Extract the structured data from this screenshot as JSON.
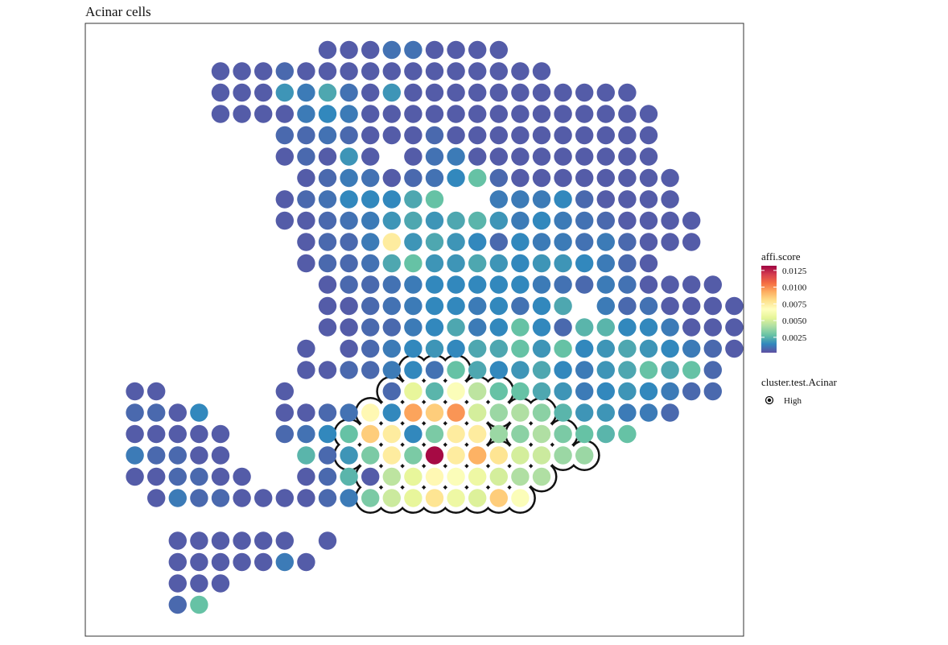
{
  "chart_data": {
    "type": "scatter",
    "title": "Acinar cells",
    "xlabel": "",
    "ylabel": "",
    "color_legend": {
      "title": "affi.score",
      "ticks": [
        "0.0025",
        "0.0050",
        "0.0075",
        "0.0100",
        "0.0125"
      ],
      "range": [
        0.0002,
        0.0132
      ],
      "palette": [
        "#5E4FA2",
        "#3288BD",
        "#66C2A5",
        "#ABDDA4",
        "#E6F598",
        "#FFFFBF",
        "#FEE08B",
        "#FDAE61",
        "#F46D43",
        "#D53E4F",
        "#9E0142"
      ]
    },
    "outline_legend": {
      "title": "cluster.test.Acinar",
      "entries": [
        "High"
      ]
    },
    "grid": false,
    "rows": [
      {
        "row": 0,
        "cols": [
          10,
          11,
          12,
          13,
          14,
          15,
          16,
          17,
          18
        ],
        "scores": [
          0.0005,
          0.0005,
          0.0005,
          0.001,
          0.001,
          0.0005,
          0.0005,
          0.0005,
          0.0005
        ]
      },
      {
        "row": 1,
        "cols": [
          5,
          6,
          7,
          8,
          9,
          10,
          11,
          12,
          13,
          14,
          15,
          16,
          17,
          18,
          19,
          20
        ],
        "scores": [
          0.0005,
          0.0005,
          0.0005,
          0.0008,
          0.0005,
          0.0005,
          0.0005,
          0.0005,
          0.0005,
          0.0005,
          0.0005,
          0.0005,
          0.0005,
          0.0005,
          0.0005,
          0.0005
        ]
      },
      {
        "row": 2,
        "cols": [
          5,
          6,
          7,
          8,
          9,
          10,
          11,
          12,
          13,
          14,
          15,
          16,
          17,
          18,
          19,
          20,
          21,
          22,
          23,
          24
        ],
        "scores": [
          0.0005,
          0.0005,
          0.0005,
          0.0018,
          0.0012,
          0.0022,
          0.001,
          0.0005,
          0.0018,
          0.0005,
          0.0005,
          0.0005,
          0.0005,
          0.0005,
          0.0005,
          0.0005,
          0.0005,
          0.0005,
          0.0005,
          0.0005
        ]
      },
      {
        "row": 3,
        "cols": [
          5,
          6,
          7,
          8,
          9,
          10,
          11,
          12,
          13,
          14,
          15,
          16,
          17,
          18,
          19,
          20,
          21,
          22,
          23,
          24,
          25
        ],
        "scores": [
          0.0005,
          0.0005,
          0.0005,
          0.0005,
          0.0012,
          0.0015,
          0.0012,
          0.0005,
          0.0005,
          0.0005,
          0.0005,
          0.0005,
          0.0005,
          0.0005,
          0.0005,
          0.0005,
          0.0005,
          0.0005,
          0.0005,
          0.0005,
          0.0005
        ]
      },
      {
        "row": 4,
        "cols": [
          8,
          9,
          10,
          11,
          12,
          13,
          14,
          15,
          16,
          17,
          18,
          19,
          20,
          21,
          22,
          23,
          24,
          25
        ],
        "scores": [
          0.0008,
          0.0008,
          0.001,
          0.0008,
          0.0005,
          0.0005,
          0.0005,
          0.0008,
          0.0005,
          0.0005,
          0.0005,
          0.0005,
          0.0005,
          0.0005,
          0.0005,
          0.0005,
          0.0005,
          0.0005
        ]
      },
      {
        "row": 5,
        "cols": [
          8,
          9,
          10,
          11,
          12,
          14,
          15,
          16,
          17,
          18,
          19,
          20,
          21,
          22,
          23,
          24,
          25
        ],
        "scores": [
          0.0005,
          0.0008,
          0.0005,
          0.0018,
          0.0005,
          0.0005,
          0.001,
          0.0012,
          0.0005,
          0.0005,
          0.0005,
          0.0005,
          0.0005,
          0.0005,
          0.0005,
          0.0005,
          0.0005
        ]
      },
      {
        "row": 6,
        "cols": [
          9,
          10,
          11,
          12,
          13,
          14,
          15,
          16,
          17,
          18,
          19,
          20,
          21,
          22,
          23,
          24,
          25,
          26
        ],
        "scores": [
          0.0005,
          0.0008,
          0.0012,
          0.001,
          0.0005,
          0.0008,
          0.001,
          0.0015,
          0.0028,
          0.0008,
          0.0005,
          0.0005,
          0.0005,
          0.0005,
          0.0005,
          0.0005,
          0.0005,
          0.0005
        ]
      },
      {
        "row": 7,
        "cols": [
          8,
          9,
          10,
          11,
          12,
          13,
          14,
          15,
          18,
          19,
          20,
          21,
          22,
          23,
          24,
          25,
          26
        ],
        "scores": [
          0.0005,
          0.0008,
          0.001,
          0.0015,
          0.0015,
          0.0015,
          0.0022,
          0.0028,
          0.0012,
          0.0012,
          0.0012,
          0.0015,
          0.0008,
          0.0005,
          0.0005,
          0.0005,
          0.0005
        ]
      },
      {
        "row": 8,
        "cols": [
          8,
          9,
          10,
          11,
          12,
          13,
          14,
          15,
          16,
          17,
          18,
          19,
          20,
          21,
          22,
          23,
          24,
          25,
          26,
          27
        ],
        "scores": [
          0.0005,
          0.0005,
          0.0008,
          0.001,
          0.0012,
          0.0018,
          0.0022,
          0.0018,
          0.0022,
          0.0025,
          0.0018,
          0.0012,
          0.0015,
          0.0012,
          0.001,
          0.0008,
          0.0005,
          0.0005,
          0.0005,
          0.0005
        ]
      },
      {
        "row": 9,
        "cols": [
          9,
          10,
          11,
          12,
          13,
          14,
          15,
          16,
          17,
          18,
          19,
          20,
          21,
          22,
          23,
          24,
          25,
          26,
          27
        ],
        "scores": [
          0.0005,
          0.0008,
          0.0008,
          0.0012,
          0.0075,
          0.0018,
          0.0022,
          0.0018,
          0.0015,
          0.0008,
          0.0015,
          0.0012,
          0.0012,
          0.001,
          0.0012,
          0.0008,
          0.0005,
          0.0005,
          0.0005
        ]
      },
      {
        "row": 10,
        "cols": [
          9,
          10,
          11,
          12,
          13,
          14,
          15,
          16,
          17,
          18,
          19,
          20,
          21,
          22,
          23,
          24,
          25
        ],
        "scores": [
          0.0005,
          0.0008,
          0.0008,
          0.001,
          0.0022,
          0.0028,
          0.0018,
          0.0018,
          0.0022,
          0.0018,
          0.0015,
          0.0018,
          0.0018,
          0.0015,
          0.0012,
          0.0008,
          0.0005
        ]
      },
      {
        "row": 11,
        "cols": [
          10,
          11,
          12,
          13,
          14,
          15,
          16,
          17,
          18,
          19,
          20,
          21,
          22,
          23,
          24,
          25,
          26,
          27,
          28
        ],
        "scores": [
          0.0005,
          0.0008,
          0.0008,
          0.001,
          0.0012,
          0.0015,
          0.0015,
          0.0015,
          0.0015,
          0.0015,
          0.0012,
          0.001,
          0.0008,
          0.0012,
          0.001,
          0.0005,
          0.0005,
          0.0005,
          0.0005
        ]
      },
      {
        "row": 12,
        "cols": [
          10,
          11,
          12,
          13,
          14,
          15,
          16,
          17,
          18,
          19,
          20,
          21,
          23,
          24,
          25,
          26,
          27,
          28,
          29
        ],
        "scores": [
          0.0005,
          0.0005,
          0.0008,
          0.001,
          0.0012,
          0.0015,
          0.0015,
          0.0012,
          0.0015,
          0.001,
          0.0015,
          0.0022,
          0.0012,
          0.0008,
          0.001,
          0.0005,
          0.0005,
          0.0005,
          0.0005
        ]
      },
      {
        "row": 13,
        "cols": [
          10,
          11,
          12,
          13,
          14,
          15,
          16,
          17,
          18,
          19,
          20,
          21,
          22,
          23,
          24,
          25,
          26,
          27,
          28,
          29
        ],
        "scores": [
          0.0005,
          0.0005,
          0.0008,
          0.0008,
          0.0012,
          0.0015,
          0.0022,
          0.0012,
          0.0015,
          0.0028,
          0.0015,
          0.0008,
          0.0025,
          0.0025,
          0.0015,
          0.0015,
          0.0012,
          0.0005,
          0.0005,
          0.0005
        ]
      },
      {
        "row": 14,
        "cols": [
          9,
          11,
          12,
          13,
          14,
          15,
          16,
          17,
          18,
          19,
          20,
          21,
          22,
          23,
          24,
          25,
          26,
          27,
          28,
          29
        ],
        "scores": [
          0.0005,
          0.0005,
          0.0008,
          0.0012,
          0.0015,
          0.0018,
          0.0015,
          0.0022,
          0.0022,
          0.0028,
          0.0018,
          0.0028,
          0.0015,
          0.0018,
          0.0022,
          0.0018,
          0.0015,
          0.0012,
          0.0008,
          0.0005
        ]
      },
      {
        "row": 15,
        "cols": [
          9,
          10,
          11,
          12,
          13,
          14,
          15,
          16,
          17,
          18,
          19,
          20,
          21,
          22,
          23,
          24,
          25,
          26,
          27,
          28
        ],
        "scores": [
          0.0005,
          0.0005,
          0.0008,
          0.0008,
          0.0012,
          0.0015,
          0.001,
          0.0028,
          0.0022,
          0.0015,
          0.0018,
          0.0022,
          0.0015,
          0.0012,
          0.0018,
          0.0022,
          0.0028,
          0.0022,
          0.0028,
          0.0008
        ]
      },
      {
        "row": 16,
        "cols": [
          1,
          2,
          8,
          13,
          14,
          15,
          16,
          17,
          18,
          19,
          20,
          21,
          22,
          23,
          24,
          25,
          26,
          27,
          28
        ],
        "scores": [
          0.0005,
          0.0005,
          0.0005,
          0.0008,
          0.0055,
          0.0025,
          0.0065,
          0.0045,
          0.0028,
          0.0028,
          0.0022,
          0.0018,
          0.0012,
          0.0015,
          0.0018,
          0.0015,
          0.0012,
          0.0008,
          0.0008
        ]
      },
      {
        "row": 17,
        "cols": [
          1,
          2,
          3,
          4,
          8,
          9,
          10,
          11,
          12,
          13,
          14,
          15,
          16,
          17,
          18,
          19,
          20,
          21,
          22,
          23,
          24,
          25,
          26
        ],
        "scores": [
          0.0008,
          0.0008,
          0.0005,
          0.0015,
          0.0005,
          0.0005,
          0.0008,
          0.001,
          0.007,
          0.0015,
          0.0095,
          0.0085,
          0.0098,
          0.005,
          0.0038,
          0.0042,
          0.0035,
          0.0025,
          0.0018,
          0.0018,
          0.0012,
          0.0012,
          0.0008
        ]
      },
      {
        "row": 18,
        "cols": [
          1,
          2,
          3,
          4,
          5,
          8,
          9,
          10,
          11,
          12,
          13,
          14,
          15,
          16,
          17,
          18,
          19,
          20,
          21,
          22,
          23,
          24
        ],
        "scores": [
          0.0005,
          0.0005,
          0.0005,
          0.0005,
          0.0005,
          0.0008,
          0.001,
          0.0015,
          0.0028,
          0.0085,
          0.0075,
          0.0015,
          0.0032,
          0.0075,
          0.0075,
          0.0038,
          0.0035,
          0.0042,
          0.0032,
          0.0028,
          0.0025,
          0.0028
        ]
      },
      {
        "row": 19,
        "cols": [
          1,
          2,
          3,
          4,
          5,
          9,
          10,
          11,
          12,
          13,
          14,
          15,
          16,
          17,
          18,
          19,
          20,
          21,
          22
        ],
        "scores": [
          0.0012,
          0.0008,
          0.0008,
          0.0005,
          0.0005,
          0.0025,
          0.0008,
          0.0018,
          0.0032,
          0.0075,
          0.0032,
          0.013,
          0.0075,
          0.0092,
          0.0078,
          0.005,
          0.0048,
          0.0038,
          0.0038
        ]
      },
      {
        "row": 20,
        "cols": [
          1,
          2,
          3,
          4,
          5,
          6,
          9,
          10,
          11,
          12,
          13,
          14,
          15,
          16,
          17,
          18,
          19,
          20
        ],
        "scores": [
          0.0005,
          0.0005,
          0.0008,
          0.0008,
          0.0005,
          0.0005,
          0.0005,
          0.0008,
          0.0025,
          0.0005,
          0.0045,
          0.0055,
          0.007,
          0.0065,
          0.0058,
          0.005,
          0.0042,
          0.0042
        ]
      },
      {
        "row": 21,
        "cols": [
          2,
          3,
          4,
          5,
          6,
          7,
          8,
          9,
          10,
          11,
          12,
          13,
          14,
          15,
          16,
          17,
          18,
          19
        ],
        "scores": [
          0.0005,
          0.0012,
          0.0008,
          0.0008,
          0.0005,
          0.0005,
          0.0005,
          0.0005,
          0.0008,
          0.0012,
          0.0032,
          0.0048,
          0.0055,
          0.0078,
          0.0058,
          0.0052,
          0.0085,
          0.0065
        ]
      },
      {
        "row": 23,
        "cols": [
          3,
          4,
          5,
          6,
          7,
          8,
          10
        ],
        "scores": [
          0.0005,
          0.0005,
          0.0005,
          0.0005,
          0.0005,
          0.0005,
          0.0005
        ]
      },
      {
        "row": 24,
        "cols": [
          3,
          4,
          5,
          6,
          7,
          8,
          9
        ],
        "scores": [
          0.0005,
          0.0005,
          0.0005,
          0.0005,
          0.0005,
          0.0012,
          0.0005
        ]
      },
      {
        "row": 25,
        "cols": [
          3,
          4,
          5
        ],
        "scores": [
          0.0005,
          0.0005,
          0.0005
        ]
      },
      {
        "row": 26,
        "cols": [
          3,
          4
        ],
        "scores": [
          0.0008,
          0.0028
        ]
      }
    ],
    "high_spots": [
      [
        14,
        15
      ],
      [
        15,
        15
      ],
      [
        16,
        15
      ],
      [
        13,
        16
      ],
      [
        14,
        16
      ],
      [
        15,
        16
      ],
      [
        16,
        16
      ],
      [
        17,
        16
      ],
      [
        18,
        16
      ],
      [
        12,
        17
      ],
      [
        13,
        17
      ],
      [
        14,
        17
      ],
      [
        15,
        17
      ],
      [
        16,
        17
      ],
      [
        17,
        17
      ],
      [
        18,
        17
      ],
      [
        19,
        17
      ],
      [
        20,
        17
      ],
      [
        11,
        18
      ],
      [
        12,
        18
      ],
      [
        13,
        18
      ],
      [
        14,
        18
      ],
      [
        15,
        18
      ],
      [
        16,
        18
      ],
      [
        17,
        18
      ],
      [
        19,
        18
      ],
      [
        20,
        18
      ],
      [
        21,
        18
      ],
      [
        11,
        19
      ],
      [
        12,
        19
      ],
      [
        13,
        19
      ],
      [
        14,
        19
      ],
      [
        15,
        19
      ],
      [
        16,
        19
      ],
      [
        17,
        19
      ],
      [
        18,
        19
      ],
      [
        19,
        19
      ],
      [
        20,
        19
      ],
      [
        21,
        19
      ],
      [
        22,
        19
      ],
      [
        12,
        20
      ],
      [
        13,
        20
      ],
      [
        14,
        20
      ],
      [
        15,
        20
      ],
      [
        16,
        20
      ],
      [
        17,
        20
      ],
      [
        18,
        20
      ],
      [
        19,
        20
      ],
      [
        20,
        20
      ],
      [
        12,
        21
      ],
      [
        13,
        21
      ],
      [
        14,
        21
      ],
      [
        15,
        21
      ],
      [
        16,
        21
      ],
      [
        17,
        21
      ],
      [
        18,
        21
      ],
      [
        19,
        21
      ]
    ]
  }
}
